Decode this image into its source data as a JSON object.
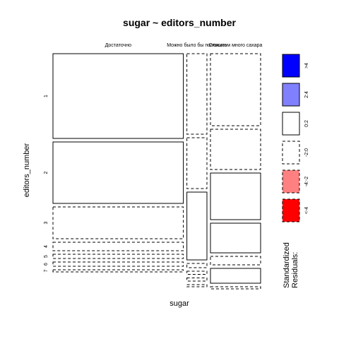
{
  "chart_data": {
    "type": "mosaic",
    "title": "sugar ~ editors_number",
    "xlabel": "sugar",
    "ylabel": "editors_number",
    "columns": [
      "Достаточно",
      "Можно было бы положить",
      "Слишком много сахара"
    ],
    "column_shares": [
      0.65,
      0.1,
      0.25
    ],
    "rows": [
      "1",
      "2",
      "3",
      "4",
      "5",
      "6",
      "7"
    ],
    "row_shares": [
      0.38,
      0.28,
      0.15,
      0.04,
      0.03,
      0.02,
      0.01
    ],
    "cells": [
      [
        {
          "share": 0.4,
          "residual_band": "0:2"
        },
        {
          "share": 0.38,
          "residual_band": "-2:0"
        },
        {
          "share": 0.34,
          "residual_band": "-2:0"
        }
      ],
      [
        {
          "share": 0.29,
          "residual_band": "0:2"
        },
        {
          "share": 0.24,
          "residual_band": "-2:0"
        },
        {
          "share": 0.19,
          "residual_band": "-2:0"
        }
      ],
      [
        {
          "share": 0.15,
          "residual_band": "-2:0"
        },
        {
          "share": 0.32,
          "residual_band": "0:2"
        },
        {
          "share": 0.22,
          "residual_band": "0:2"
        }
      ],
      [
        {
          "share": 0.04,
          "residual_band": "-2:0"
        },
        {
          "share": 0.02,
          "residual_band": "-2:0"
        },
        {
          "share": 0.14,
          "residual_band": "0:2"
        }
      ],
      [
        {
          "share": 0.02,
          "residual_band": "-2:0"
        },
        {
          "share": 0.015,
          "residual_band": "-2:0"
        },
        {
          "share": 0.04,
          "residual_band": "-2:0"
        }
      ],
      [
        {
          "share": 0.02,
          "residual_band": "-2:0"
        },
        {
          "share": 0.015,
          "residual_band": "-2:0"
        },
        {
          "share": 0.07,
          "residual_band": "0:2"
        }
      ],
      [
        {
          "share": 0.01,
          "residual_band": "-2:0"
        },
        {
          "share": 0.01,
          "residual_band": "-2:0"
        },
        {
          "share": 0.01,
          "residual_band": "-2:0"
        }
      ]
    ],
    "legend": {
      "title_line1": "Standardized",
      "title_line2": "Residuals:",
      "placement": "right",
      "items": [
        {
          "label": ">4",
          "fill": "#0000ff",
          "dashed": false
        },
        {
          "label": "2:4",
          "fill": "#8080ff",
          "dashed": false
        },
        {
          "label": "0:2",
          "fill": "#ffffff",
          "dashed": false
        },
        {
          "label": "-2:0",
          "fill": "#ffffff",
          "dashed": true
        },
        {
          "label": "-4:-2",
          "fill": "#ff8080",
          "dashed": true
        },
        {
          "label": "<-4",
          "fill": "#ff0000",
          "dashed": true
        }
      ]
    }
  }
}
